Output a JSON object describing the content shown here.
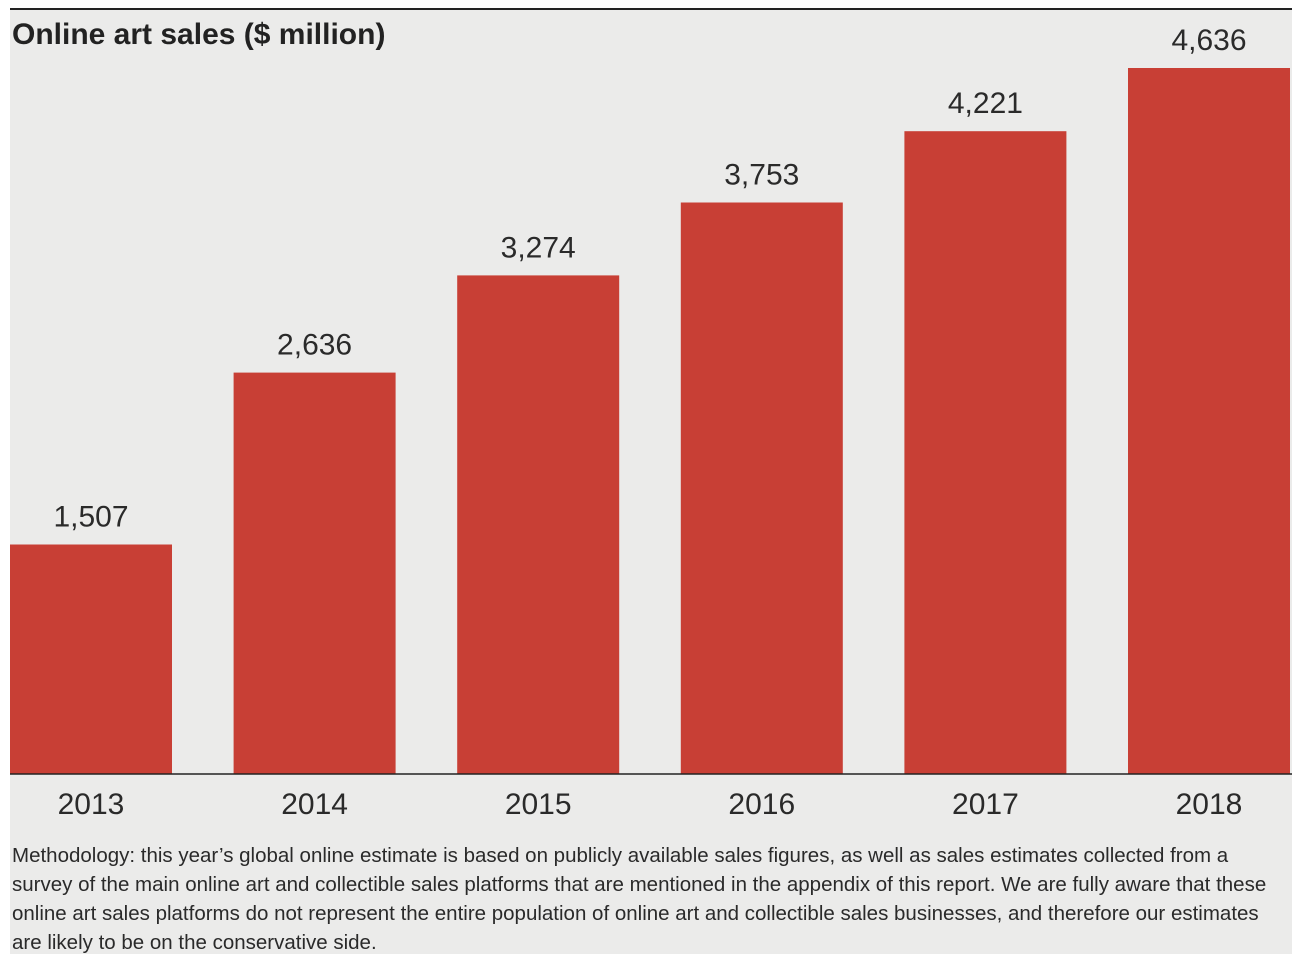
{
  "chart_data": {
    "type": "bar",
    "title": "Online art sales ($ million)",
    "categories": [
      "2013",
      "2014",
      "2015",
      "2016",
      "2017",
      "2018"
    ],
    "values": [
      1507,
      2636,
      3274,
      3753,
      4221,
      4636
    ],
    "value_labels": [
      "1,507",
      "2,636",
      "3,274",
      "3,753",
      "4,221",
      "4,636"
    ],
    "bar_color": "#c83f35",
    "background_color": "#ebebea",
    "ylim": [
      0,
      4636
    ],
    "grid": false,
    "legend": "none"
  },
  "note": "Methodology: this year’s global online estimate is based on publicly available sales figures, as well as sales estimates collected from a survey of the main online art and collectible sales platforms that are mentioned in the appendix of this report. We are fully aware that these online art sales platforms do not represent the entire population of online art and collectible sales businesses, and therefore our estimates are likely to be on the conservative side."
}
